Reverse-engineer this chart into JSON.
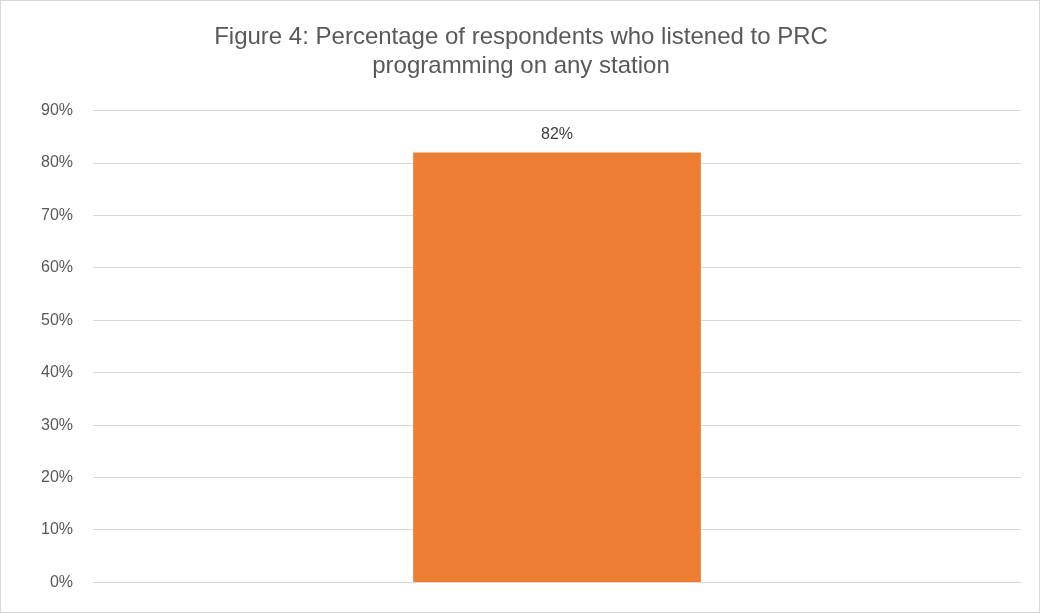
{
  "chart_data": {
    "type": "bar",
    "title": "Figure 4: Percentage of respondents who listened to PRC programming on any station",
    "categories": [
      null
    ],
    "values": [
      82
    ],
    "color": "#ed7d31",
    "value_labels": [
      "82%"
    ],
    "ylim": [
      0,
      90
    ],
    "yticks": [
      {
        "value": 0,
        "label": "0%"
      },
      {
        "value": 10,
        "label": "10%"
      },
      {
        "value": 20,
        "label": "20%"
      },
      {
        "value": 30,
        "label": "30%"
      },
      {
        "value": 40,
        "label": "40%"
      },
      {
        "value": 50,
        "label": "50%"
      },
      {
        "value": 60,
        "label": "60%"
      },
      {
        "value": 70,
        "label": "70%"
      },
      {
        "value": 80,
        "label": "80%"
      },
      {
        "value": 90,
        "label": "90%"
      }
    ],
    "grid": "y"
  }
}
